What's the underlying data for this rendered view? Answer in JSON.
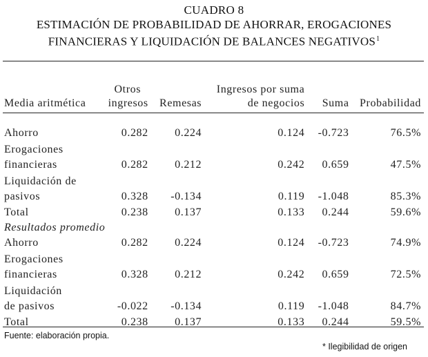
{
  "title": {
    "label": "CUADRO 8",
    "line1": "ESTIMACIÓN DE PROBABILIDAD DE AHORRAR, EROGACIONES",
    "line2": "FINANCIERAS Y LIQUIDACIÓN DE BALANCES NEGATIVOS",
    "footnote_mark": "1"
  },
  "columns": {
    "c0": "Media aritmética",
    "c1_a": "Otros",
    "c1_b": "ingresos",
    "c2": "Remesas",
    "c3_a": "Ingresos por suma",
    "c3_b": "de negocios",
    "c4": "Suma",
    "c5": "Probabilidad"
  },
  "rows_a": [
    {
      "label_a": "Ahorro",
      "label_b": "",
      "otros": "0.282",
      "remesas": "0.224",
      "negocios": "0.124",
      "suma": "-0.723",
      "prob": "76.5%"
    },
    {
      "label_a": "Erogaciones",
      "label_b": "financieras",
      "otros": "0.282",
      "remesas": "0.212",
      "negocios": "0.242",
      "suma": "0.659",
      "prob": "47.5%"
    },
    {
      "label_a": "Liquidación de",
      "label_b": "pasivos",
      "otros": "0.328",
      "remesas": "-0.134",
      "negocios": "0.119",
      "suma": "-1.048",
      "prob": "85.3%"
    },
    {
      "label_a": "Total",
      "label_b": "",
      "otros": "0.238",
      "remesas": "0.137",
      "negocios": "0.133",
      "suma": "0.244",
      "prob": "59.6%"
    }
  ],
  "section_label": "Resultados promedio",
  "rows_b": [
    {
      "label_a": "Ahorro",
      "label_b": "",
      "otros": "0.282",
      "remesas": "0.224",
      "negocios": "0.124",
      "suma": "-0.723",
      "prob": "74.9%"
    },
    {
      "label_a": "Erogaciones",
      "label_b": "financieras",
      "otros": "0.328",
      "remesas": "0.212",
      "negocios": "0.242",
      "suma": "0.659",
      "prob": "72.5%"
    },
    {
      "label_a": "Liquidación",
      "label_b": "de pasivos",
      "otros": "-0.022",
      "remesas": "-0.134",
      "negocios": "0.119",
      "suma": "-1.048",
      "prob": "84.7%"
    },
    {
      "label_a": "Total",
      "label_b": "",
      "otros": "0.238",
      "remesas": "0.137",
      "negocios": "0.133",
      "suma": "0.244",
      "prob": "59.5%"
    }
  ],
  "source": "Fuente: elaboración propia.",
  "note": "* Ilegibilidad de origen"
}
